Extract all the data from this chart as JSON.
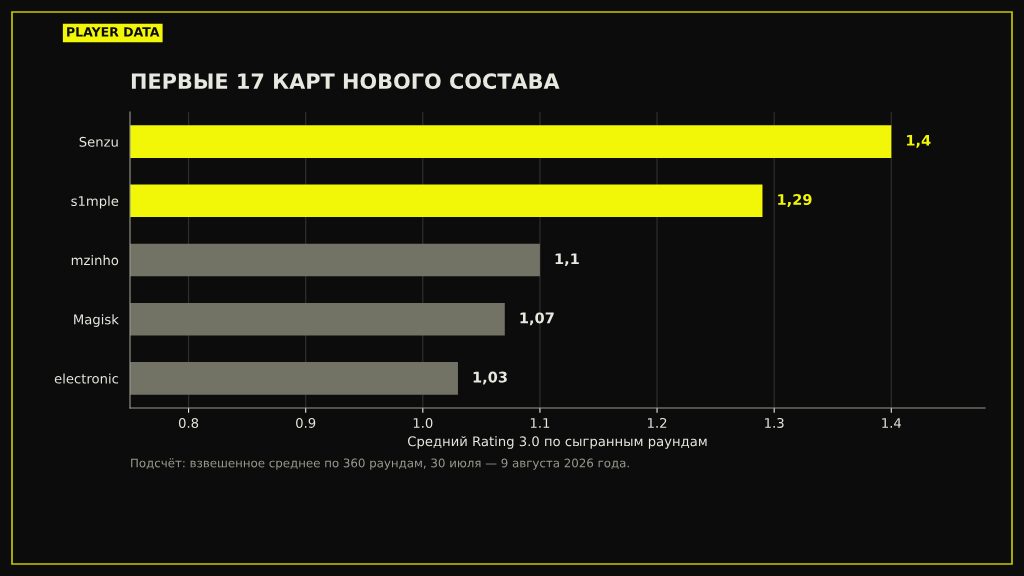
{
  "chart_data": {
    "type": "bar",
    "orientation": "horizontal",
    "title": "ПЕРВЫЕ 17 КАРТ НОВОГО СОСТАВА",
    "subtitle": "PLAYER DATA",
    "categories": [
      "Senzu",
      "s1mple",
      "mzinho",
      "Magisk",
      "electronic"
    ],
    "values": [
      1.4,
      1.29,
      1.1,
      1.07,
      1.03
    ],
    "value_labels": [
      "1,4",
      "1,29",
      "1,1",
      "1,07",
      "1,03"
    ],
    "colors": [
      "#f2f707",
      "#f2f707",
      "#727265",
      "#727265",
      "#727265"
    ],
    "xlabel": "Средний Rating 3.0 по сыгранным раундам",
    "xlim": [
      0.75,
      1.48
    ],
    "xticks": [
      0.8,
      0.9,
      {
        "value": 1,
        "label": "1.0"
      },
      1.1,
      1.2,
      1.3,
      1.4
    ],
    "grid": "x",
    "legend": false,
    "annotations": [
      "Подсчёт: взвешенное среднее по 360 раундам, 30 июля — 9 августа 2026 года."
    ]
  }
}
